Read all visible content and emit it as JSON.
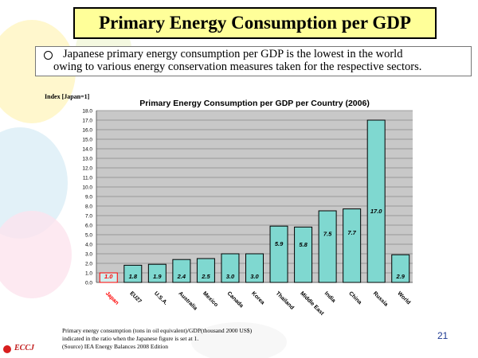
{
  "slide": {
    "title": "Primary Energy Consumption per GDP",
    "note_line1": "Japanese primary energy consumption per GDP is the lowest in the world",
    "note_line2": "owing to various energy conservation measures taken for the respective sectors.",
    "page_number": "21",
    "logo_text": "ECCJ",
    "footnote": [
      "Primary energy consumption (tons in oil equivalent)/GDP(thousand 2000 US$)",
      " indicated in the ratio when the Japanese figure is set at 1.",
      "(Source) IEA Energy Balances 2008 Edition"
    ]
  },
  "chart_data": {
    "type": "bar",
    "title": "Primary Energy Consumption per GDP per Country (2006)",
    "ylabel": "Index [Japan=1]",
    "ylim": [
      0,
      18
    ],
    "yticks": [
      "0.0",
      "1.0",
      "2.0",
      "3.0",
      "4.0",
      "5.0",
      "6.0",
      "7.0",
      "8.0",
      "9.0",
      "10.0",
      "11.0",
      "12.0",
      "13.0",
      "14.0",
      "15.0",
      "16.0",
      "17.0",
      "18.0"
    ],
    "grid": true,
    "categories": [
      "Japan",
      "EU27",
      "U.S.A.",
      "Australia",
      "Mexico",
      "Canada",
      "Korea",
      "Thailand",
      "Middle East",
      "India",
      "China",
      "Russia",
      "World"
    ],
    "values": [
      1.0,
      1.8,
      1.9,
      2.4,
      2.5,
      3.0,
      3.0,
      5.9,
      5.8,
      7.5,
      7.7,
      17.0,
      2.9
    ],
    "value_labels": [
      "1.0",
      "1.8",
      "1.9",
      "2.4",
      "2.5",
      "3.0",
      "3.0",
      "5.9",
      "5.8",
      "7.5",
      "7.7",
      "17.0",
      "2.9"
    ],
    "colors": {
      "bar_fill": "#7fd8d0",
      "bar_stroke": "#000000",
      "first_bar_fill": "#cfeeee",
      "first_bar_stroke": "#ff0000",
      "first_label_color": "#ff0000",
      "plot_bg": "#c8c8c8",
      "grid": "#8a8a8a"
    }
  }
}
